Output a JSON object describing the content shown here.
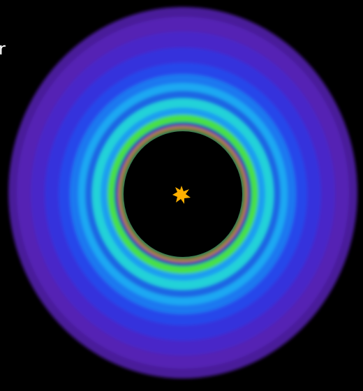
{
  "label": "r"
}
